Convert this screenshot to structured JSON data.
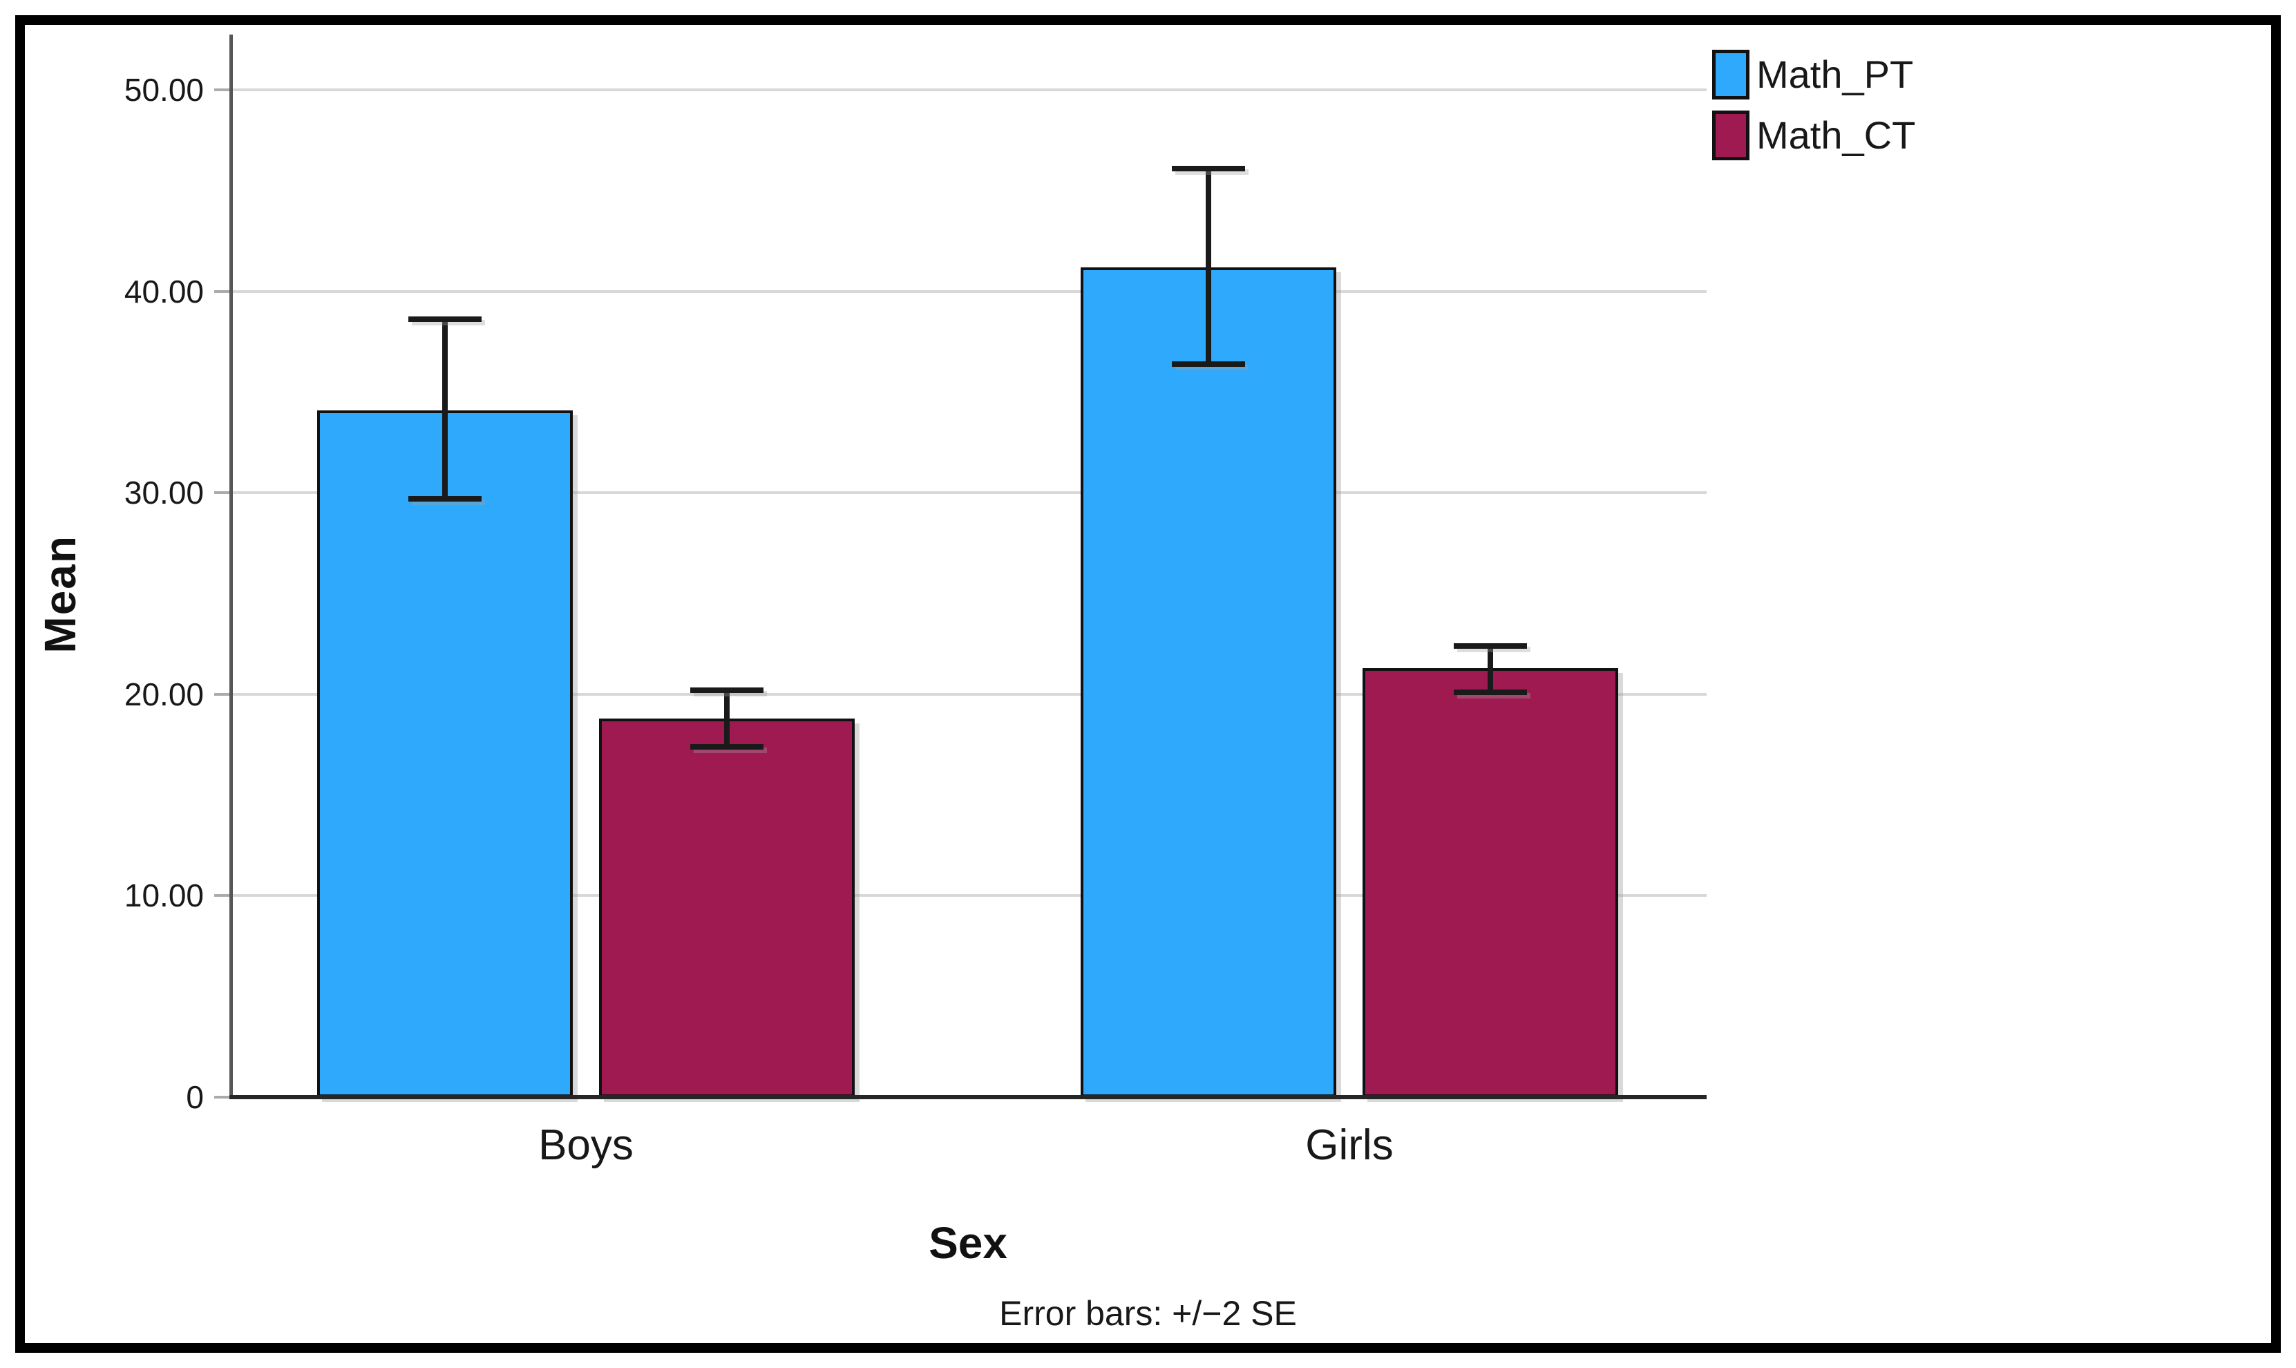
{
  "figure": {
    "background": "#ffffff",
    "frame_color": "#000000",
    "gridline_color": "#d8d8d8",
    "y_axis_color": "#565656",
    "x_axis_color": "#262626"
  },
  "chart_data": {
    "type": "bar",
    "title": "",
    "categories": [
      "Boys",
      "Girls"
    ],
    "series": [
      {
        "name": "Math_PT",
        "color": "#2FA9FC",
        "values": [
          34.1,
          41.2
        ],
        "error_upper": [
          38.6,
          46.1
        ],
        "error_lower": [
          29.7,
          36.4
        ]
      },
      {
        "name": "Math_CT",
        "color": "#A01A52",
        "values": [
          18.8,
          21.3
        ],
        "error_upper": [
          20.2,
          22.4
        ],
        "error_lower": [
          17.4,
          20.1
        ]
      }
    ],
    "xlabel": "Sex",
    "ylabel": "Mean",
    "ylim": [
      0,
      52.5
    ],
    "yticks": [
      0,
      10,
      20,
      30,
      40,
      50
    ],
    "ytick_labels": [
      "0",
      "10.00",
      "20.00",
      "30.00",
      "40.00",
      "50.00"
    ],
    "grid": true,
    "error_bar_note": "Error bars: +/−2 SE",
    "legend_position": "top-right"
  },
  "legend": {
    "items": [
      {
        "label": "Math_PT",
        "color": "#2FA9FC"
      },
      {
        "label": "Math_CT",
        "color": "#A01A52"
      }
    ]
  }
}
